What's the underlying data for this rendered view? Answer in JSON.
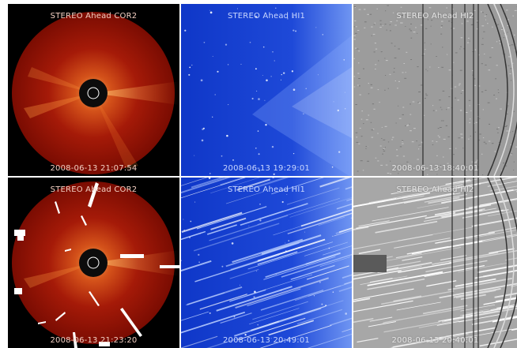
{
  "panels": [
    {
      "id": "cor2-1",
      "instrument": "STEREO Ahead COR2",
      "timestamp": "2008-06-13 21:07:54"
    },
    {
      "id": "hi1-1",
      "instrument": "STEREO Ahead HI1",
      "timestamp": "2008-06-13 19:29:01"
    },
    {
      "id": "hi2-1",
      "instrument": "STEREO Ahead HI2",
      "timestamp": "2008-06-13 18:40:01"
    },
    {
      "id": "cor2-2",
      "instrument": "STEREO Ahead COR2",
      "timestamp": "2008-06-13 21:23:20"
    },
    {
      "id": "hi1-2",
      "instrument": "STEREO Ahead HI1",
      "timestamp": "2008-06-13 20:49:01"
    },
    {
      "id": "hi2-2",
      "instrument": "STEREO Ahead HI2",
      "timestamp": "2008-06-13 20:40:01"
    }
  ],
  "colors": {
    "cor2_disk": "#a51405",
    "cor2_background": "#000000",
    "hi1_field": "#1a3fd0",
    "hi2_field": "#9a9a9a",
    "separator": "#ffffff"
  }
}
